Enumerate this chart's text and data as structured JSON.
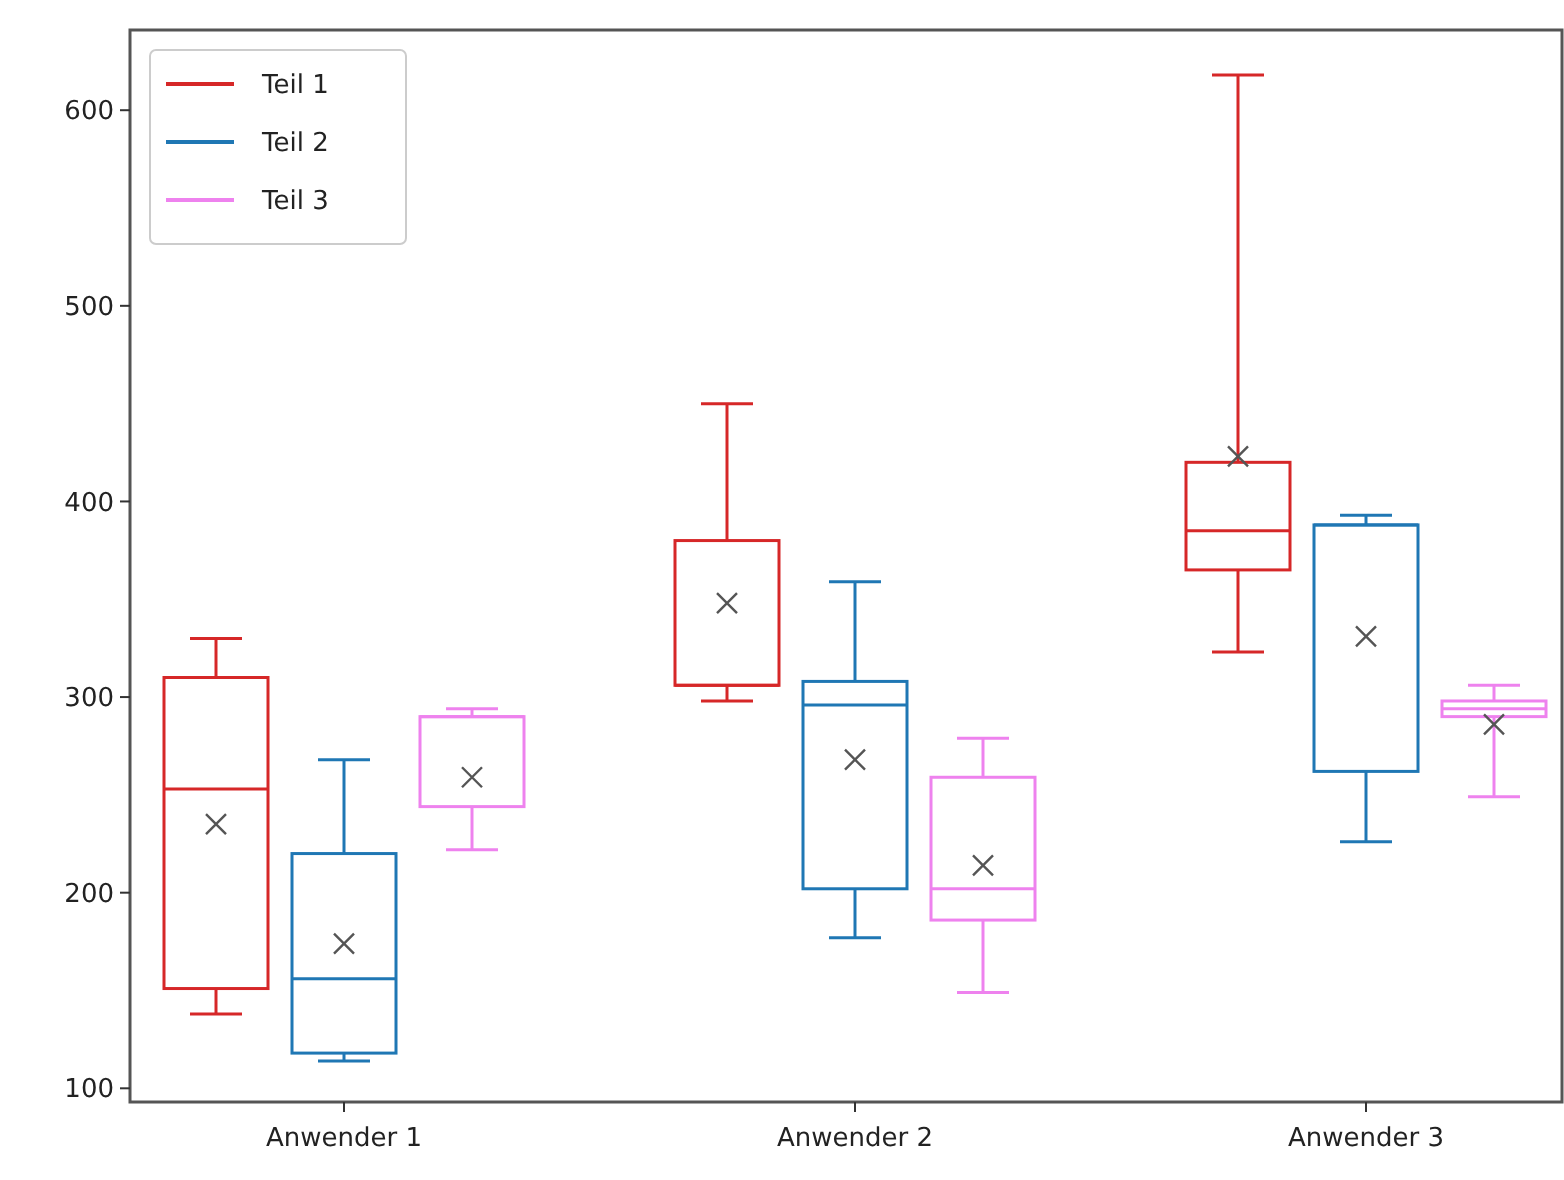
{
  "chart_data": {
    "type": "box",
    "categories": [
      "Anwender 1",
      "Anwender 2",
      "Anwender 3"
    ],
    "ylim": [
      93,
      641
    ],
    "yticks": [
      100,
      200,
      300,
      400,
      500,
      600
    ],
    "legend": "top left",
    "grid": false,
    "series": [
      {
        "name": "Teil 1",
        "color": "#d62728",
        "boxes": [
          {
            "low": 138,
            "q1": 151,
            "median": 253,
            "q3": 310,
            "high": 330,
            "mean": 235
          },
          {
            "low": 298,
            "q1": 306,
            "median": 306,
            "q3": 380,
            "high": 450,
            "mean": 348
          },
          {
            "low": 323,
            "q1": 365,
            "median": 385,
            "q3": 420,
            "high": 618,
            "mean": 423
          }
        ]
      },
      {
        "name": "Teil 2",
        "color": "#1f77b4",
        "boxes": [
          {
            "low": 114,
            "q1": 118,
            "median": 156,
            "q3": 220,
            "high": 268,
            "mean": 174
          },
          {
            "low": 177,
            "q1": 202,
            "median": 296,
            "q3": 308,
            "high": 359,
            "mean": 268
          },
          {
            "low": 226,
            "q1": 262,
            "median": 388,
            "q3": 388,
            "high": 393,
            "mean": 331
          }
        ]
      },
      {
        "name": "Teil 3",
        "color": "#ee82ee",
        "boxes": [
          {
            "low": 222,
            "q1": 244,
            "median": 290,
            "q3": 290,
            "high": 294,
            "mean": 259
          },
          {
            "low": 149,
            "q1": 186,
            "median": 202,
            "q3": 259,
            "high": 279,
            "mean": 214
          },
          {
            "low": 249,
            "q1": 290,
            "median": 294,
            "q3": 298,
            "high": 306,
            "mean": 286
          }
        ]
      }
    ]
  }
}
